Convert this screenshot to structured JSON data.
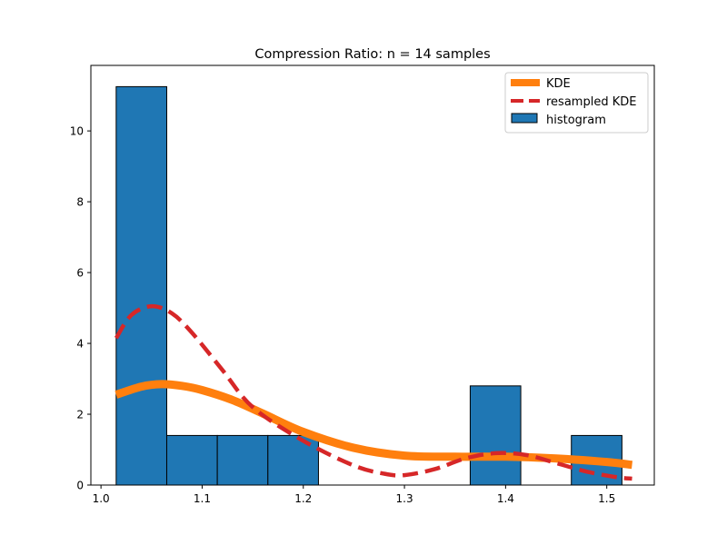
{
  "chart_data": {
    "type": "bar",
    "title": "Compression Ratio: n = 14 samples",
    "xlabel": "",
    "ylabel": "",
    "xlim": [
      0.99,
      1.547
    ],
    "ylim": [
      0,
      11.85
    ],
    "xticks": [
      1.0,
      1.1,
      1.2,
      1.3,
      1.4,
      1.5
    ],
    "xtick_labels": [
      "1.0",
      "1.1",
      "1.2",
      "1.3",
      "1.4",
      "1.5"
    ],
    "yticks": [
      0,
      2,
      4,
      6,
      8,
      10
    ],
    "ytick_labels": [
      "0",
      "2",
      "4",
      "6",
      "8",
      "10"
    ],
    "grid": false,
    "legend_position": "top-right",
    "histogram": {
      "name": "histogram",
      "color": "#1f77b4",
      "edgecolor": "#000000",
      "bins": [
        {
          "x0": 1.015,
          "x1": 1.065,
          "value": 11.25
        },
        {
          "x0": 1.065,
          "x1": 1.115,
          "value": 1.4
        },
        {
          "x0": 1.115,
          "x1": 1.165,
          "value": 1.4
        },
        {
          "x0": 1.165,
          "x1": 1.215,
          "value": 1.4
        },
        {
          "x0": 1.215,
          "x1": 1.265,
          "value": 0
        },
        {
          "x0": 1.265,
          "x1": 1.315,
          "value": 0
        },
        {
          "x0": 1.315,
          "x1": 1.365,
          "value": 0
        },
        {
          "x0": 1.365,
          "x1": 1.415,
          "value": 2.8
        },
        {
          "x0": 1.415,
          "x1": 1.465,
          "value": 0
        },
        {
          "x0": 1.465,
          "x1": 1.515,
          "value": 1.4
        }
      ]
    },
    "series": [
      {
        "name": "KDE",
        "color": "#ff7f0e",
        "style": "solid",
        "x": [
          1.015,
          1.04,
          1.06,
          1.08,
          1.1,
          1.13,
          1.16,
          1.2,
          1.25,
          1.3,
          1.35,
          1.4,
          1.45,
          1.5,
          1.525
        ],
        "y": [
          2.55,
          2.78,
          2.85,
          2.8,
          2.68,
          2.4,
          2.02,
          1.5,
          1.05,
          0.83,
          0.8,
          0.8,
          0.75,
          0.65,
          0.57
        ]
      },
      {
        "name": "resampled KDE",
        "color": "#d62728",
        "style": "dashed",
        "x": [
          1.015,
          1.03,
          1.05,
          1.07,
          1.09,
          1.12,
          1.15,
          1.2,
          1.25,
          1.28,
          1.3,
          1.33,
          1.36,
          1.39,
          1.42,
          1.45,
          1.48,
          1.51,
          1.525
        ],
        "y": [
          4.15,
          4.8,
          5.05,
          4.85,
          4.3,
          3.25,
          2.2,
          1.25,
          0.55,
          0.32,
          0.28,
          0.45,
          0.75,
          0.9,
          0.85,
          0.62,
          0.38,
          0.22,
          0.18
        ]
      }
    ]
  }
}
